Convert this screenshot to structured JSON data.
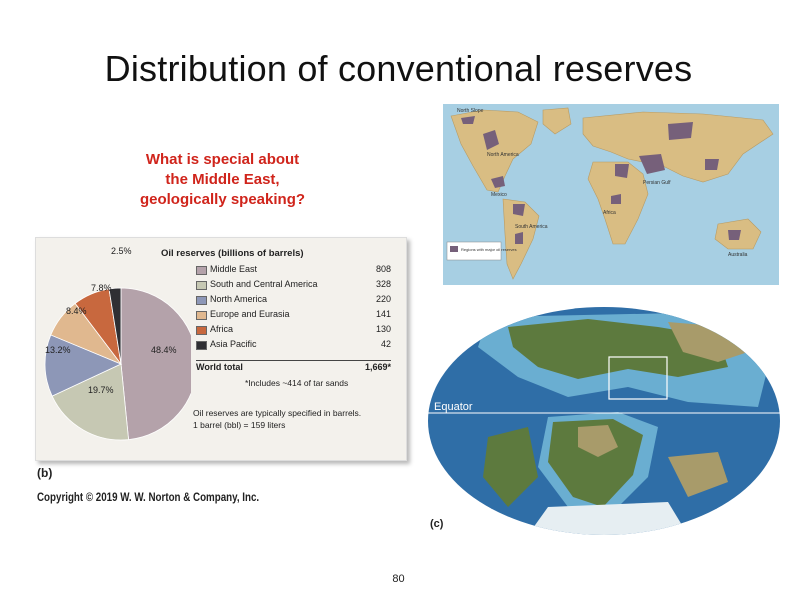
{
  "slide": {
    "title": "Distribution of conventional reserves",
    "question": [
      "What is special about",
      "the Middle East,",
      "geologically speaking?"
    ],
    "page_number": "80"
  },
  "figure_b": {
    "label": "(b)",
    "legend_title": "Oil reserves (billions of barrels)",
    "rows": [
      {
        "name": "Middle East",
        "value": "808",
        "color": "#b4a2aa"
      },
      {
        "name": "South and Central America",
        "value": "328",
        "color": "#c6c8b3"
      },
      {
        "name": "North America",
        "value": "220",
        "color": "#8d97b7"
      },
      {
        "name": "Europe and Eurasia",
        "value": "141",
        "color": "#e0b88f"
      },
      {
        "name": "Africa",
        "value": "130",
        "color": "#c8683e"
      },
      {
        "name": "Asia Pacific",
        "value": "42",
        "color": "#2f2f33"
      }
    ],
    "total_label": "World total",
    "total_value": "1,669*",
    "tar_note": "*Includes ~414 of tar sands",
    "note_line1": "Oil reserves are typically specified in barrels.",
    "note_line2": "1 barrel (bbl) = 159 liters",
    "copyright": "Copyright © 2019 W. W. Norton & Company, Inc."
  },
  "chart_data": {
    "type": "pie",
    "title": "Oil reserves (billions of barrels)",
    "categories": [
      "Middle East",
      "South and Central America",
      "North America",
      "Europe and Eurasia",
      "Africa",
      "Asia Pacific"
    ],
    "values": [
      808,
      328,
      220,
      141,
      130,
      42
    ],
    "percent_labels": [
      "48.4%",
      "19.7%",
      "13.2%",
      "8.4%",
      "7.8%",
      "2.5%"
    ],
    "colors": [
      "#b4a2aa",
      "#c6c8b3",
      "#8d97b7",
      "#e0b88f",
      "#c8683e",
      "#2f2f33"
    ]
  },
  "world_map": {
    "labels": [
      "North Slope",
      "Mexico",
      "North America",
      "South America",
      "Africa",
      "Persian Gulf",
      "Australia"
    ],
    "legend_text": "Regions with major oil reserves",
    "colors": {
      "ocean": "#a7cfe3",
      "land": "#d9bd83",
      "reserves": "#76607a"
    }
  },
  "figure_c": {
    "label": "(c)",
    "equator_label": "Equator",
    "colors": {
      "ocean_deep": "#2f6ea7",
      "ocean_shallow": "#6aaed1",
      "land_green": "#5d7a3e",
      "land_tan": "#a89b6a"
    }
  }
}
